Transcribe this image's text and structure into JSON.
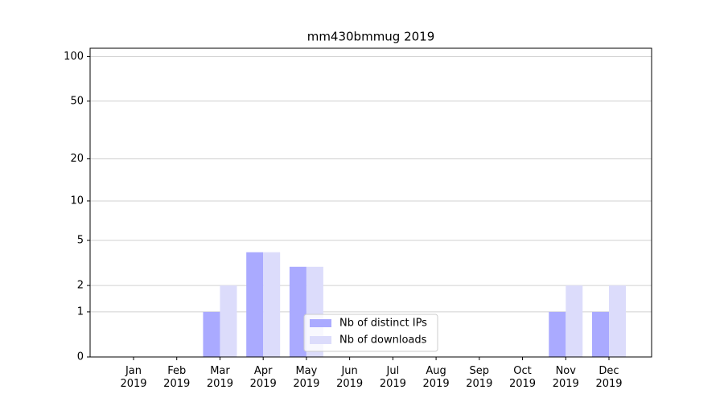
{
  "chart_data": {
    "type": "bar",
    "title": "mm430bmmug 2019",
    "categories": [
      "Jan 2019",
      "Feb 2019",
      "Mar 2019",
      "Apr 2019",
      "May 2019",
      "Jun 2019",
      "Jul 2019",
      "Aug 2019",
      "Sep 2019",
      "Oct 2019",
      "Nov 2019",
      "Dec 2019"
    ],
    "series": [
      {
        "name": "Nb of distinct IPs",
        "color": "#aaaaff",
        "values": [
          0,
          0,
          1,
          4,
          3,
          0,
          0,
          0,
          0,
          0,
          1,
          1
        ]
      },
      {
        "name": "Nb of downloads",
        "color": "#dcdcfb",
        "values": [
          0,
          0,
          2,
          4,
          3,
          0,
          0,
          0,
          0,
          0,
          2,
          2
        ]
      }
    ],
    "yscale": "log1p",
    "ylim": [
      0,
      114
    ],
    "yticks": [
      0,
      1,
      2,
      5,
      10,
      20,
      50,
      100
    ],
    "grid": true,
    "legend": "lower center"
  }
}
